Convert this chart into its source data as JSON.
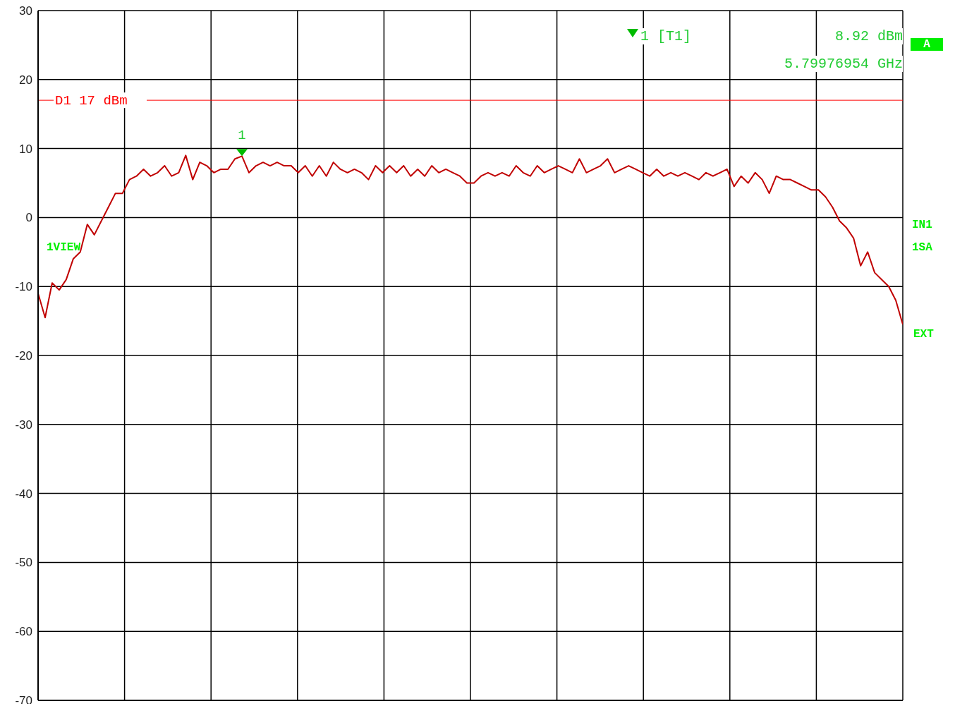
{
  "chart_data": {
    "type": "line",
    "categories": [
      null,
      null,
      null,
      null,
      null,
      null,
      null,
      null,
      null,
      null,
      null,
      null,
      null,
      null,
      null,
      null,
      null,
      null,
      null,
      null,
      null,
      null,
      null,
      null,
      null,
      null,
      null,
      null,
      null,
      null,
      null,
      null,
      null,
      null,
      null,
      null,
      null,
      null,
      null,
      null,
      null,
      null,
      null,
      null,
      null,
      null,
      null,
      null,
      null,
      null,
      null,
      null,
      null,
      null,
      null,
      null,
      null,
      null,
      null,
      null,
      null,
      null,
      null,
      null,
      null,
      null,
      null,
      null,
      null,
      null,
      null,
      null,
      null,
      null,
      null,
      null,
      null,
      null,
      null,
      null,
      null,
      null,
      null,
      null,
      null,
      null,
      null,
      null,
      null,
      null,
      null,
      null,
      null,
      null,
      null,
      null,
      null,
      null,
      null,
      null,
      null,
      null,
      null,
      null,
      null,
      null,
      null,
      null,
      null,
      null,
      null,
      null,
      null,
      null,
      null,
      null,
      null,
      null,
      null,
      null,
      null,
      null,
      null,
      null
    ],
    "series": [
      {
        "color": "#c00000",
        "values": [
          -11,
          -14.5,
          -9.5,
          -10.5,
          -9,
          -6,
          -5,
          -1,
          -2.5,
          -0.5,
          1.5,
          3.5,
          3.5,
          5.5,
          6,
          7,
          6,
          6.5,
          7.5,
          6,
          6.5,
          9,
          5.5,
          8,
          7.5,
          6.5,
          7,
          7,
          8.5,
          8.9,
          6.5,
          7.5,
          8,
          7.5,
          8,
          7.5,
          7.5,
          6.5,
          7.5,
          6,
          7.5,
          6,
          8,
          7,
          6.5,
          7,
          6.5,
          5.5,
          7.5,
          6.5,
          7.5,
          6.5,
          7.5,
          6,
          7,
          6,
          7.5,
          6.5,
          7,
          6.5,
          6,
          5,
          5,
          6,
          6.5,
          6,
          6.5,
          6,
          7.5,
          6.5,
          6,
          7.5,
          6.5,
          7,
          7.5,
          7,
          6.5,
          8.5,
          6.5,
          7,
          7.5,
          8.5,
          6.5,
          7,
          7.5,
          7,
          6.5,
          6,
          7,
          6,
          6.5,
          6,
          6.5,
          6,
          5.5,
          6.5,
          6,
          6.5,
          7,
          4.5,
          6,
          5,
          6.5,
          5.5,
          3.5,
          6,
          5.5,
          5.5,
          5,
          4.5,
          4,
          4,
          3,
          1.5,
          -0.5,
          -1.5,
          -3,
          -7,
          -5,
          -8,
          -9,
          -10,
          -12,
          -15.5
        ]
      }
    ],
    "ylim": [
      -70,
      30
    ],
    "yticks": [
      -70,
      -60,
      -50,
      -40,
      -30,
      -20,
      -10,
      0,
      10,
      20,
      30
    ],
    "grid": true,
    "tick_labels": "y",
    "marker": "none",
    "line_style": "solid",
    "ref_lines": [
      {
        "axis": "y",
        "value": 17,
        "label": "D1 17 dBm",
        "color": "#ff0000"
      }
    ],
    "annotations": [
      {
        "text": "1",
        "y": 8.92
      },
      "1 [T1]",
      "8.92 dBm",
      "5.79976954 GHz",
      "A",
      "IN1",
      "1SA",
      "EXT",
      "1VIEW"
    ]
  }
}
